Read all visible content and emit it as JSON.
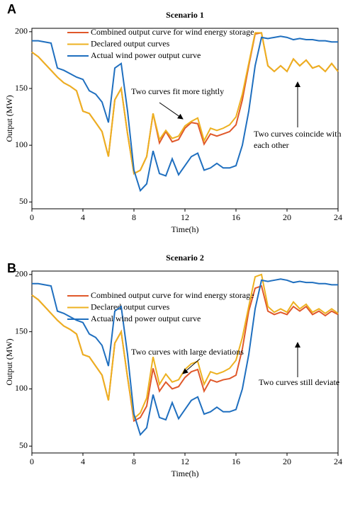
{
  "panel_labels": [
    "A",
    "B"
  ],
  "chart_data": [
    {
      "type": "line",
      "title": "Scenario 1",
      "x_label": "Time(h)",
      "y_label": "Output (MW)",
      "x": [
        0,
        0.5,
        1,
        1.5,
        2,
        2.5,
        3,
        3.5,
        4,
        4.5,
        5,
        5.5,
        6,
        6.5,
        7,
        7.5,
        8,
        8.5,
        9,
        9.5,
        10,
        10.5,
        11,
        11.5,
        12,
        12.5,
        13,
        13.5,
        14,
        14.5,
        15,
        15.5,
        16,
        16.5,
        17,
        17.5,
        18,
        18.5,
        19,
        19.5,
        20,
        20.5,
        21,
        21.5,
        22,
        22.5,
        23,
        23.5,
        24
      ],
      "series": [
        {
          "name": "Combined output curve for wind energy storage",
          "color": "#e0582a",
          "values": [
            182,
            178,
            172,
            166,
            160,
            155,
            152,
            148,
            130,
            128,
            120,
            112,
            90,
            140,
            150,
            110,
            75,
            78,
            90,
            128,
            102,
            112,
            103,
            105,
            115,
            120,
            119,
            101,
            110,
            108,
            110,
            112,
            118,
            140,
            170,
            198,
            199,
            170,
            165,
            170,
            165,
            176,
            170,
            175,
            168,
            170,
            165,
            172,
            165
          ]
        },
        {
          "name": "Declared output curves",
          "color": "#edb120",
          "values": [
            182,
            178,
            172,
            166,
            160,
            155,
            152,
            148,
            130,
            128,
            120,
            112,
            90,
            140,
            150,
            110,
            75,
            78,
            90,
            128,
            105,
            113,
            106,
            108,
            117,
            121,
            124,
            104,
            115,
            113,
            115,
            118,
            125,
            145,
            172,
            199,
            199,
            170,
            165,
            170,
            165,
            176,
            170,
            175,
            168,
            170,
            165,
            172,
            165
          ]
        },
        {
          "name": "Actual wind power output curve",
          "color": "#1f6fbf",
          "values": [
            192,
            192,
            191,
            190,
            168,
            166,
            163,
            160,
            158,
            148,
            145,
            138,
            120,
            168,
            172,
            130,
            78,
            60,
            66,
            95,
            75,
            73,
            88,
            74,
            82,
            90,
            93,
            78,
            80,
            84,
            80,
            80,
            82,
            100,
            130,
            170,
            195,
            194,
            195,
            196,
            195,
            193,
            194,
            193,
            193,
            192,
            192,
            191,
            191
          ]
        }
      ],
      "annotations": [
        {
          "text": "Two curves fit more tightly"
        },
        {
          "text": [
            "Two curves coincide with",
            "each other"
          ]
        }
      ],
      "xlim": [
        0,
        24
      ],
      "xticks": [
        0,
        4,
        8,
        12,
        16,
        20,
        24
      ],
      "ylim": [
        44,
        203
      ],
      "yticks": [
        50,
        100,
        150,
        200
      ]
    },
    {
      "type": "line",
      "title": "Scenario 2",
      "x_label": "Time(h)",
      "y_label": "Output (MW)",
      "x": [
        0,
        0.5,
        1,
        1.5,
        2,
        2.5,
        3,
        3.5,
        4,
        4.5,
        5,
        5.5,
        6,
        6.5,
        7,
        7.5,
        8,
        8.5,
        9,
        9.5,
        10,
        10.5,
        11,
        11.5,
        12,
        12.5,
        13,
        13.5,
        14,
        14.5,
        15,
        15.5,
        16,
        16.5,
        17,
        17.5,
        18,
        18.5,
        19,
        19.5,
        20,
        20.5,
        21,
        21.5,
        22,
        22.5,
        23,
        23.5,
        24
      ],
      "series": [
        {
          "name": "Combined output curve for wind energy storage",
          "color": "#e0582a",
          "values": [
            182,
            178,
            172,
            166,
            160,
            155,
            152,
            148,
            130,
            128,
            120,
            112,
            90,
            140,
            150,
            110,
            72,
            75,
            85,
            118,
            98,
            106,
            100,
            102,
            110,
            115,
            117,
            98,
            108,
            106,
            108,
            109,
            112,
            135,
            168,
            188,
            190,
            168,
            165,
            167,
            165,
            172,
            168,
            172,
            165,
            168,
            164,
            168,
            165
          ]
        },
        {
          "name": "Declared output curves",
          "color": "#edb120",
          "values": [
            182,
            178,
            172,
            166,
            160,
            155,
            152,
            148,
            130,
            128,
            120,
            112,
            90,
            140,
            150,
            110,
            74,
            79,
            92,
            128,
            104,
            113,
            106,
            108,
            117,
            122,
            124,
            104,
            115,
            113,
            115,
            118,
            125,
            145,
            172,
            198,
            200,
            172,
            167,
            170,
            167,
            176,
            170,
            174,
            167,
            170,
            166,
            170,
            166
          ]
        },
        {
          "name": "Actual wind power output curve",
          "color": "#1f6fbf",
          "values": [
            192,
            192,
            191,
            190,
            168,
            166,
            163,
            160,
            158,
            148,
            145,
            138,
            120,
            168,
            172,
            130,
            78,
            60,
            66,
            95,
            75,
            73,
            88,
            74,
            82,
            90,
            93,
            78,
            80,
            84,
            80,
            80,
            82,
            100,
            130,
            170,
            195,
            194,
            195,
            196,
            195,
            193,
            194,
            193,
            193,
            192,
            192,
            191,
            191
          ]
        }
      ],
      "annotations": [
        {
          "text": "Two curves with large deviations"
        },
        {
          "text": [
            "Two curves still deviate"
          ]
        }
      ],
      "xlim": [
        0,
        24
      ],
      "xticks": [
        0,
        4,
        8,
        12,
        16,
        20,
        24
      ],
      "ylim": [
        44,
        203
      ],
      "yticks": [
        50,
        100,
        150,
        200
      ]
    }
  ]
}
